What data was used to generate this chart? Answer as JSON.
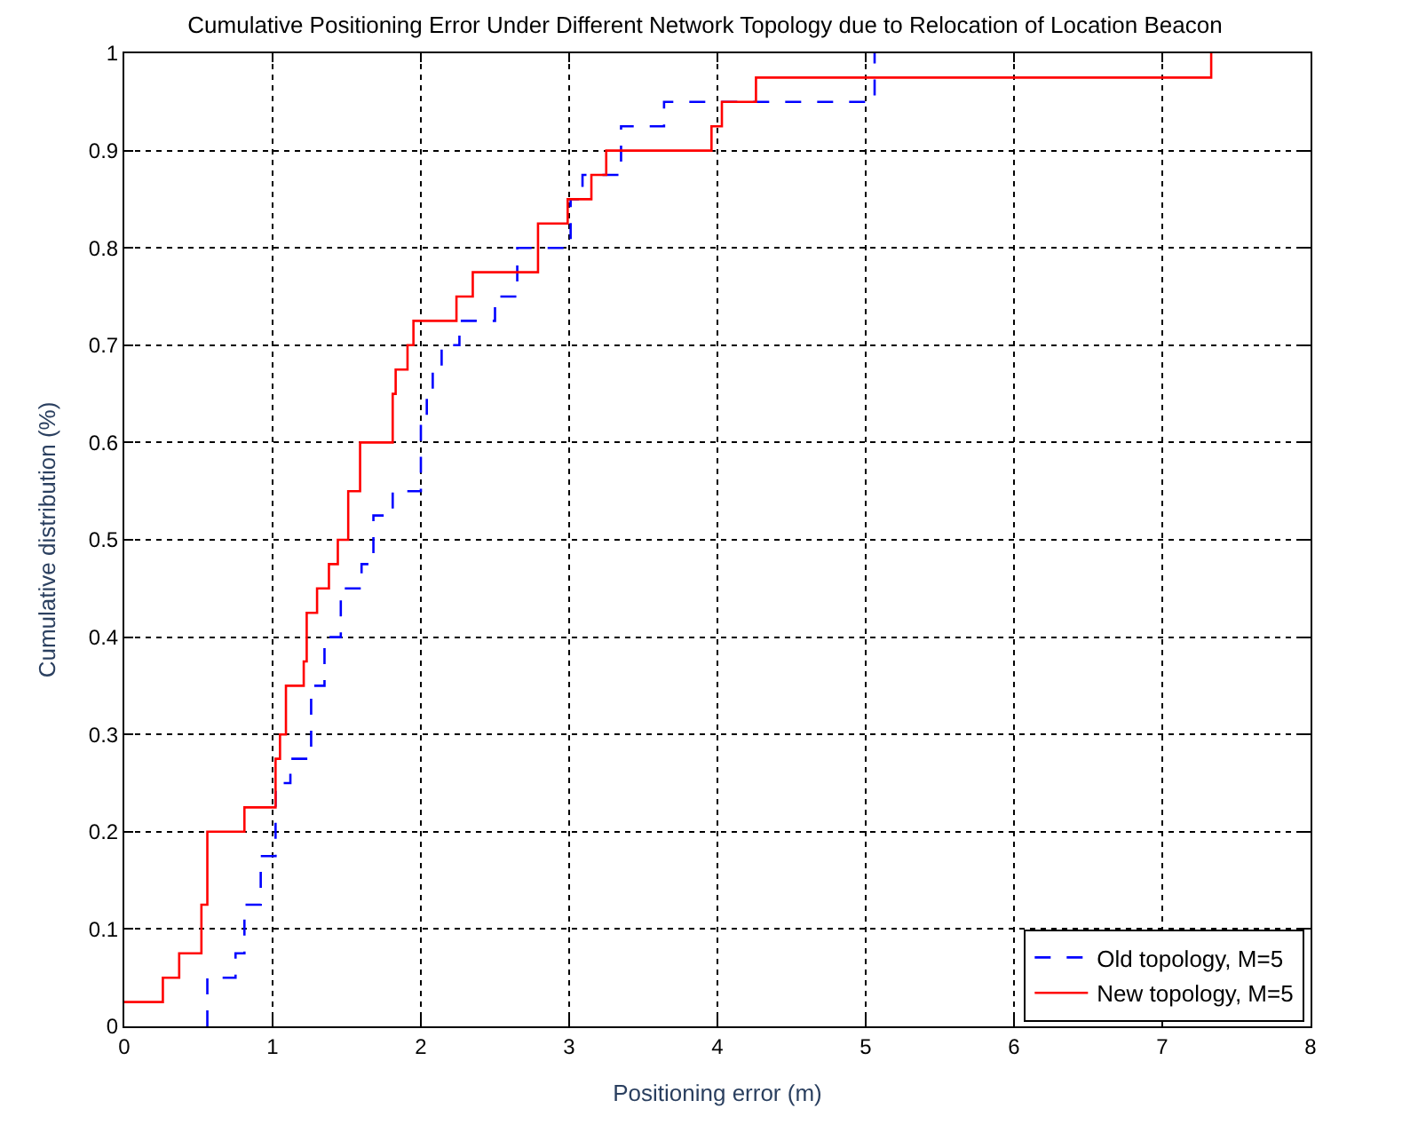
{
  "chart_data": {
    "type": "step",
    "title": "Cumulative Positioning Error Under Different Network Topology due to Relocation of Location Beacon",
    "xlabel": "Positioning error (m)",
    "ylabel": "Cumulative distribution (%)",
    "xlim": [
      0,
      8
    ],
    "xticks": [
      0,
      1,
      2,
      3,
      4,
      5,
      6,
      7,
      8
    ],
    "ylim": [
      0,
      1
    ],
    "yticks": [
      0,
      0.1,
      0.2,
      0.3,
      0.4,
      0.5,
      0.6,
      0.7,
      0.8,
      0.9,
      1
    ],
    "grid": true,
    "legend": "bottom right",
    "marker": "none",
    "series": [
      {
        "name": "Old topology, M=5",
        "color": "#0000ff",
        "line_style": "dashed",
        "x": [
          0.56,
          0.56,
          0.75,
          0.81,
          0.92,
          1.02,
          1.12,
          1.26,
          1.35,
          1.46,
          1.6,
          1.68,
          1.81,
          2.0,
          2.04,
          2.08,
          2.14,
          2.26,
          2.5,
          2.65,
          3.01,
          3.09,
          3.35,
          3.64,
          5.06
        ],
        "values": [
          0,
          0.05,
          0.075,
          0.125,
          0.175,
          0.25,
          0.275,
          0.35,
          0.4,
          0.45,
          0.475,
          0.525,
          0.55,
          0.625,
          0.65,
          0.675,
          0.7,
          0.725,
          0.75,
          0.8,
          0.85,
          0.875,
          0.925,
          0.95,
          1.0
        ]
      },
      {
        "name": "New topology, M=5",
        "color": "#ff0000",
        "line_style": "solid",
        "x": [
          0,
          0.26,
          0.37,
          0.52,
          0.56,
          0.81,
          1.02,
          1.05,
          1.09,
          1.21,
          1.23,
          1.3,
          1.38,
          1.44,
          1.51,
          1.59,
          1.81,
          1.83,
          1.91,
          1.95,
          2.24,
          2.35,
          2.79,
          2.99,
          3.15,
          3.25,
          3.96,
          4.03,
          4.26,
          7.33
        ],
        "values": [
          0.025,
          0.05,
          0.075,
          0.125,
          0.2,
          0.225,
          0.275,
          0.3,
          0.35,
          0.375,
          0.425,
          0.45,
          0.475,
          0.5,
          0.55,
          0.6,
          0.65,
          0.675,
          0.7,
          0.725,
          0.75,
          0.775,
          0.825,
          0.85,
          0.875,
          0.9,
          0.925,
          0.95,
          0.975,
          1.0
        ]
      }
    ]
  }
}
